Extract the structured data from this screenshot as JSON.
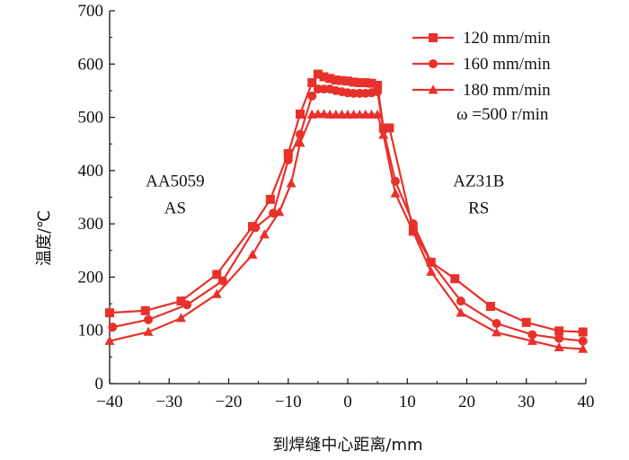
{
  "chart_data": {
    "type": "line",
    "xlabel": "到焊缝中心距离/mm",
    "ylabel": "温度/℃",
    "xlim": [
      -40,
      40
    ],
    "ylim": [
      0,
      700
    ],
    "xticks": [
      -40,
      -30,
      -20,
      -10,
      0,
      10,
      20,
      30,
      40
    ],
    "xtick_labels": [
      "−40",
      "−30",
      "−20",
      "−10",
      "0",
      "10",
      "20",
      "30",
      "40"
    ],
    "yticks": [
      0,
      100,
      200,
      300,
      400,
      500,
      600,
      700
    ],
    "ytick_labels": [
      "0",
      "100",
      "200",
      "300",
      "400",
      "500",
      "600",
      "700"
    ],
    "grid": false,
    "legend_position": "top-right",
    "line_color": "#e8312a",
    "annotations": [
      {
        "text": "AA5059",
        "x": -29,
        "y": 370
      },
      {
        "text": "AS",
        "x": -29,
        "y": 320
      },
      {
        "text": "AZ31B",
        "x": 22,
        "y": 370
      },
      {
        "text": "RS",
        "x": 22,
        "y": 320
      },
      {
        "text": "ω =500 r/min",
        "x": 26,
        "y": 496
      }
    ],
    "series": [
      {
        "name": "120 mm/min",
        "marker": "square",
        "x": [
          -40,
          -34,
          -28,
          -22,
          -16,
          -13,
          -10,
          -8,
          -6,
          -5,
          -4,
          -3,
          -2,
          -1,
          0,
          1,
          2,
          3,
          4,
          5,
          6,
          7,
          11,
          14,
          18,
          24,
          30,
          35.5,
          39.5
        ],
        "y": [
          133,
          137,
          155,
          205,
          295,
          346,
          432,
          506,
          565,
          581,
          576,
          573,
          570,
          569,
          568,
          566,
          565,
          565,
          564,
          560,
          480,
          480,
          288,
          228,
          197,
          145,
          115,
          99,
          97
        ]
      },
      {
        "name": "160 mm/min",
        "marker": "circle",
        "x": [
          -39.5,
          -33.5,
          -27,
          -21,
          -15.5,
          -12.5,
          -10,
          -8,
          -6,
          -5,
          -4,
          -3,
          -2,
          -1,
          0,
          1,
          2,
          3,
          4,
          5,
          6,
          8,
          11,
          14,
          19,
          25,
          31,
          35.5,
          39.5
        ],
        "y": [
          106,
          120,
          148,
          193,
          293,
          320,
          420,
          468,
          540,
          553,
          553,
          553,
          550,
          548,
          546,
          545,
          545,
          545,
          546,
          548,
          476,
          380,
          300,
          228,
          155,
          113,
          92,
          85,
          80
        ]
      },
      {
        "name": "180 mm/min",
        "marker": "triangle",
        "x": [
          -40,
          -33.5,
          -28,
          -22,
          -16,
          -14,
          -11.5,
          -9.5,
          -8,
          -6,
          -5,
          -4,
          -3,
          -2,
          -1,
          0,
          1,
          2,
          3,
          4,
          5,
          6,
          8,
          11,
          14,
          19,
          25,
          31,
          35.5,
          39.5
        ],
        "y": [
          80,
          97,
          123,
          168,
          242,
          280,
          322,
          376,
          452,
          505,
          506,
          506,
          505,
          505,
          505,
          505,
          505,
          505,
          505,
          505,
          505,
          467,
          357,
          285,
          210,
          133,
          96,
          80,
          68,
          65
        ]
      }
    ]
  }
}
